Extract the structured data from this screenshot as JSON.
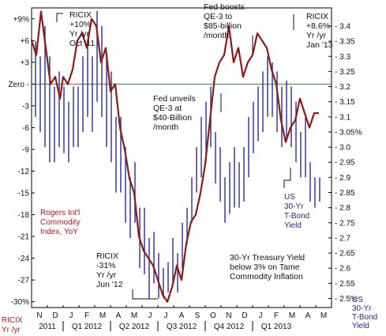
{
  "colors": {
    "ricix": "#8b1a1a",
    "bond": "#2b2d8f",
    "zero_line": "#2e8b2e",
    "frame": "#000000"
  },
  "chart_data": {
    "type": "line",
    "left_axis": {
      "ticks": [
        "+9%",
        "+6",
        "+3",
        "Zero",
        "-3",
        "-6",
        "-9",
        "-12",
        "-15",
        "-18",
        "-21",
        "-24",
        "-27",
        "-30%"
      ],
      "values": [
        9,
        6,
        3,
        0,
        -3,
        -6,
        -9,
        -12,
        -15,
        -18,
        -21,
        -24,
        -27,
        -30
      ],
      "ylim": [
        -30.8,
        10.5
      ],
      "label_line1": "RICIX",
      "label_line2": "Yr /yr"
    },
    "right_axis": {
      "ticks": [
        "3.4",
        "3.35",
        "3.3",
        "3.25",
        "3.2",
        "3.15",
        "3.1",
        "3.05%",
        "3.0",
        "2.95",
        "2.9",
        "2.85",
        "2.8",
        "2.75",
        "2.7",
        "2.65",
        "2.6",
        "2.55",
        "2.5%"
      ],
      "values": [
        3.4,
        3.35,
        3.3,
        3.25,
        3.2,
        3.15,
        3.1,
        3.05,
        3.0,
        2.95,
        2.9,
        2.85,
        2.8,
        2.75,
        2.7,
        2.65,
        2.6,
        2.55,
        2.5
      ],
      "ylim": [
        2.47,
        3.46
      ],
      "label_lines": [
        "US",
        "30-Yr",
        "T-Bond",
        "Yield"
      ]
    },
    "x_axis": {
      "months": [
        "N",
        "D",
        "J",
        "F",
        "M",
        "A",
        "M",
        "J",
        "J",
        "A",
        "S",
        "O",
        "N",
        "D",
        "J",
        "F",
        "M",
        "A",
        "M"
      ],
      "quarters": [
        "2011",
        "Q1 2012",
        "Q2 2012",
        "Q3 2012",
        "Q4 2012",
        "Q1 2013"
      ]
    },
    "series": [
      {
        "name": "Rogers Int'l Commodity Index, YoY",
        "axis": "left",
        "x": [
          0,
          0.3,
          0.6,
          0.9,
          1.2,
          1.5,
          1.8,
          2.0,
          2.3,
          2.6,
          2.9,
          3.2,
          3.5,
          3.8,
          4.1,
          4.4,
          4.7,
          5.0,
          5.3,
          5.6,
          5.9,
          6.2,
          6.5,
          6.8,
          7.1,
          7.4,
          7.7,
          8.0,
          8.3,
          8.6,
          8.9,
          9.2,
          9.5,
          9.8,
          10.1,
          10.4,
          10.7,
          11.0,
          11.3,
          11.6,
          11.9,
          12.2,
          12.5,
          12.8,
          13.1,
          13.4,
          13.7,
          14.0,
          14.3,
          14.6,
          14.9,
          15.2,
          15.5,
          15.8,
          16.1,
          16.4,
          16.7,
          17.0,
          17.3,
          17.6,
          17.9,
          18.2
        ],
        "values": [
          6,
          4,
          10,
          5,
          0,
          1,
          -2,
          1,
          0,
          2,
          6,
          7,
          5,
          9,
          8,
          3,
          5,
          -1,
          0,
          -6,
          -9,
          -13,
          -15,
          -21,
          -23,
          -24,
          -25,
          -27,
          -29,
          -30,
          -28,
          -25,
          -27,
          -22,
          -19,
          -18,
          -15,
          -11,
          -5,
          1,
          3,
          4,
          8,
          3,
          5,
          1,
          3,
          4,
          7,
          6,
          5,
          2,
          0,
          -5,
          -8,
          -6,
          -5,
          -2,
          -4,
          -6,
          -4,
          -4
        ]
      },
      {
        "name": "US 30-Yr T-Bond Yield",
        "axis": "right",
        "x": [
          0.2,
          0.5,
          0.8,
          1.1,
          1.4,
          1.7,
          2.0,
          2.3,
          2.6,
          2.9,
          3.2,
          3.5,
          3.8,
          4.1,
          4.4,
          4.7,
          5.0,
          5.3,
          5.6,
          5.9,
          6.2,
          6.5,
          6.8,
          7.1,
          7.4,
          7.7,
          8.0,
          8.3,
          8.6,
          8.9,
          9.2,
          9.5,
          9.8,
          10.1,
          10.4,
          10.7,
          11.0,
          11.3,
          11.6,
          11.9,
          12.2,
          12.5,
          12.8,
          13.1,
          13.4,
          13.7,
          14.0,
          14.3,
          14.6,
          14.9,
          15.2,
          15.5,
          15.8,
          16.1,
          16.4,
          16.7,
          17.0,
          17.3,
          17.6,
          17.9,
          18.2
        ],
        "high": [
          3.35,
          3.3,
          3.4,
          3.3,
          3.2,
          3.25,
          3.2,
          3.15,
          3.2,
          3.2,
          3.3,
          3.35,
          3.3,
          3.45,
          3.4,
          3.3,
          3.25,
          3.1,
          3.1,
          3.0,
          2.9,
          2.95,
          2.8,
          2.8,
          2.7,
          2.72,
          2.65,
          2.6,
          2.62,
          2.7,
          2.65,
          2.75,
          2.8,
          2.9,
          3.0,
          3.1,
          3.15,
          3.2,
          3.05,
          3.0,
          2.9,
          2.95,
          3.0,
          2.95,
          3.0,
          3.1,
          3.15,
          3.2,
          3.25,
          3.3,
          3.28,
          3.25,
          3.2,
          3.22,
          3.2,
          3.15,
          3.05,
          3.1,
          2.95,
          2.9,
          2.9
        ],
        "low": [
          3.1,
          3.05,
          3.0,
          2.95,
          2.95,
          3.0,
          2.98,
          2.95,
          3.0,
          3.0,
          3.05,
          3.1,
          3.05,
          3.15,
          3.1,
          3.0,
          2.95,
          2.85,
          2.85,
          2.75,
          2.7,
          2.75,
          2.6,
          2.58,
          2.5,
          2.55,
          2.5,
          2.5,
          2.52,
          2.55,
          2.52,
          2.6,
          2.68,
          2.75,
          2.85,
          2.9,
          2.95,
          3.0,
          2.88,
          2.82,
          2.75,
          2.78,
          2.8,
          2.8,
          2.82,
          2.9,
          2.98,
          3.02,
          3.05,
          3.1,
          3.1,
          3.05,
          3.0,
          3.02,
          3.0,
          2.95,
          2.9,
          2.9,
          2.82,
          2.8,
          2.82
        ]
      }
    ],
    "annotations": [
      {
        "lines": [
          "RICIX",
          "+10%",
          "Yr /yr",
          "Oct '11"
        ],
        "cls": "ann"
      },
      {
        "lines": [
          "Fed boosts",
          "QE-3 to",
          "$85-billion",
          "/month"
        ],
        "cls": "ann"
      },
      {
        "lines": [
          "RICIX",
          "+8.6%",
          "Yr /yr",
          "Jan '13"
        ],
        "cls": "ann"
      },
      {
        "lines": [
          "Fed unveils",
          "QE-3 at",
          "$40-Billion",
          "/month"
        ],
        "cls": "ann"
      },
      {
        "lines": [
          "Rogers Int'l",
          "Commodity",
          "Index, YoY"
        ],
        "cls": "lab-red"
      },
      {
        "lines": [
          "US",
          "30-Yr",
          "T-Bond",
          "Yield"
        ],
        "cls": "lab-blue"
      },
      {
        "lines": [
          "30-Yr Treasury Yield",
          "below 3% on Tame",
          "Commodity Inflation"
        ],
        "cls": "ann"
      },
      {
        "lines": [
          "RICIX",
          "-31%",
          "Yr /yr",
          "Jun '12"
        ],
        "cls": "ann"
      }
    ]
  }
}
